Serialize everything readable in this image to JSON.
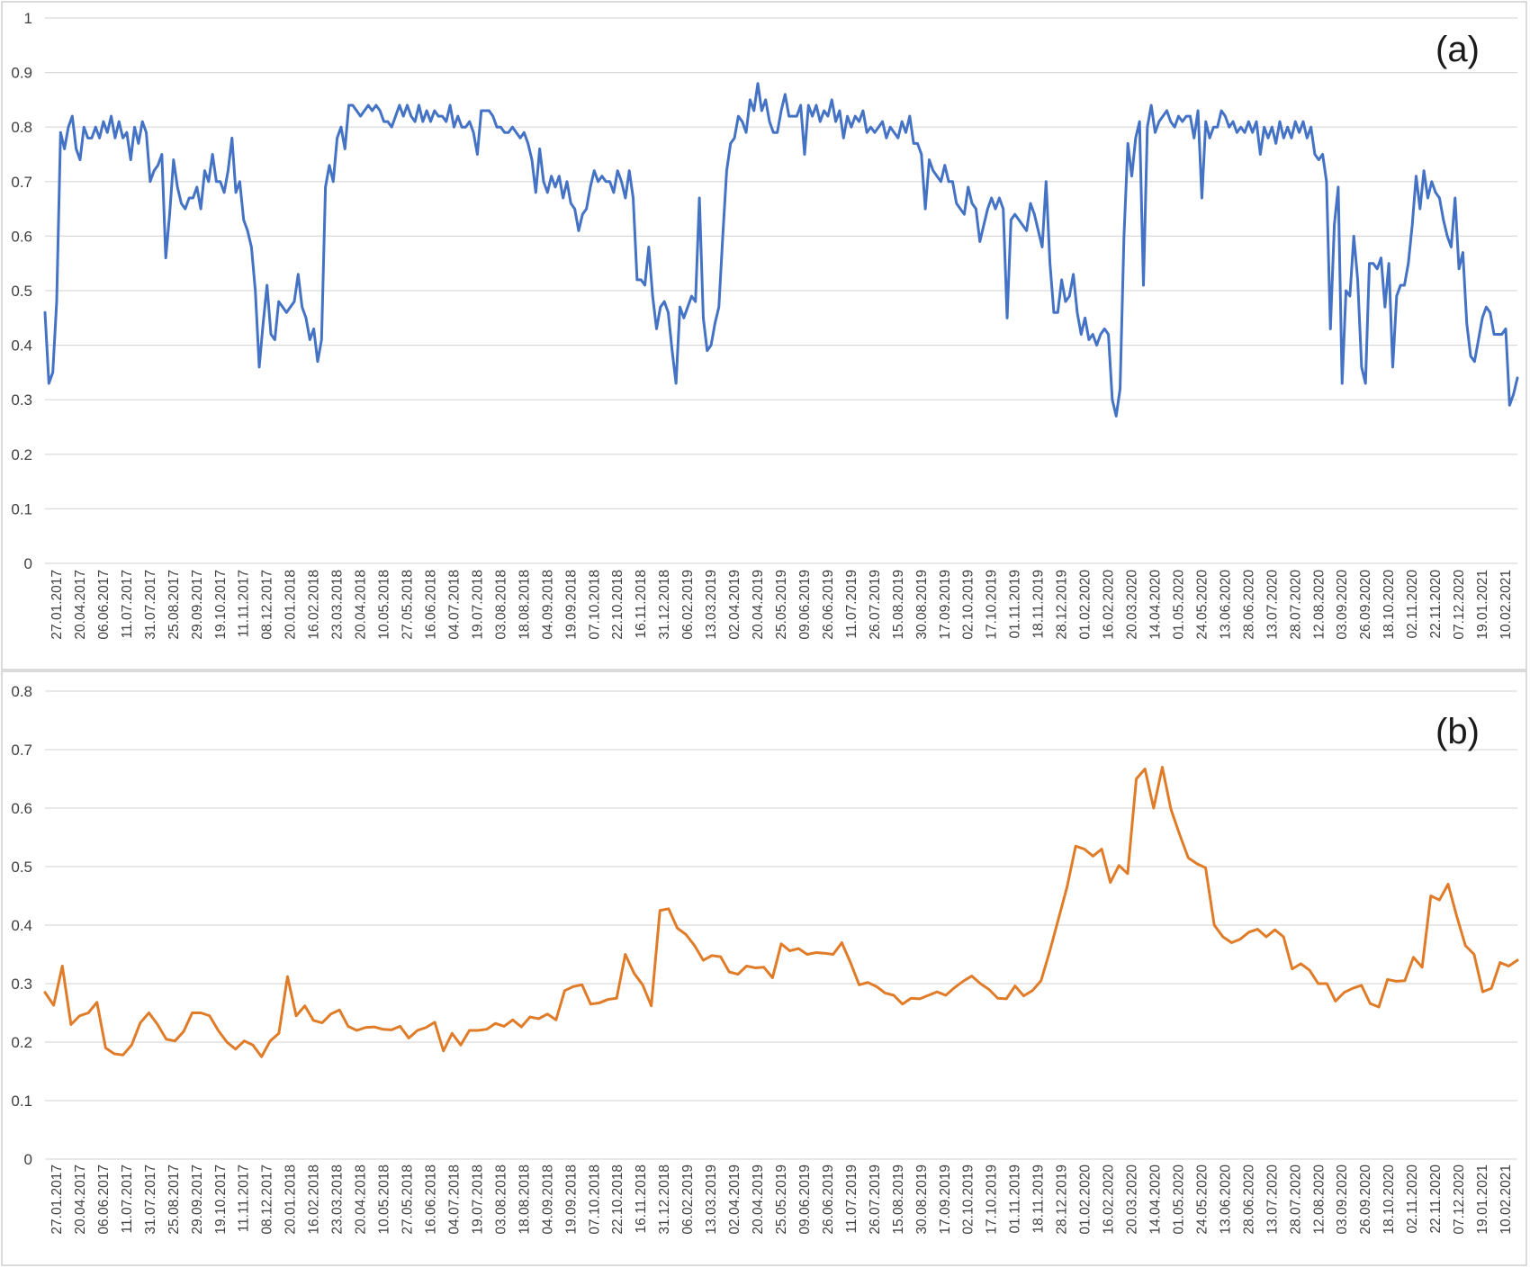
{
  "chart_data": [
    {
      "type": "line",
      "panel_label": "(a)",
      "ylim": [
        0,
        1
      ],
      "yticks": [
        "0",
        "0.1",
        "0.2",
        "0.3",
        "0.4",
        "0.5",
        "0.6",
        "0.7",
        "0.8",
        "0.9",
        "1"
      ],
      "xticks": [
        "27.01.2017",
        "20.04.2017",
        "06.06.2017",
        "11.07.2017",
        "31.07.2017",
        "25.08.2017",
        "29.09.2017",
        "19.10.2017",
        "11.11.2017",
        "08.12.2017",
        "20.01.2018",
        "16.02.2018",
        "23.03.2018",
        "20.04.2018",
        "10.05.2018",
        "27.05.2018",
        "16.06.2018",
        "04.07.2018",
        "19.07.2018",
        "03.08.2018",
        "18.08.2018",
        "04.09.2018",
        "19.09.2018",
        "07.10.2018",
        "22.10.2018",
        "16.11.2018",
        "31.12.2018",
        "06.02.2019",
        "13.03.2019",
        "02.04.2019",
        "20.04.2019",
        "25.05.2019",
        "09.06.2019",
        "26.06.2019",
        "11.07.2019",
        "26.07.2019",
        "15.08.2019",
        "30.08.2019",
        "17.09.2019",
        "02.10.2019",
        "17.10.2019",
        "01.11.2019",
        "18.11.2019",
        "28.12.2019",
        "01.02.2020",
        "16.02.2020",
        "20.03.2020",
        "14.04.2020",
        "01.05.2020",
        "24.05.2020",
        "13.06.2020",
        "28.06.2020",
        "13.07.2020",
        "28.07.2020",
        "12.08.2020",
        "03.09.2020",
        "26.09.2020",
        "18.10.2020",
        "02.11.2020",
        "22.11.2020",
        "07.12.2020",
        "19.01.2021",
        "10.02.2021"
      ],
      "grid": true,
      "colors": {
        "line": "#4472c4"
      },
      "series": [
        {
          "values": [
            0.46,
            0.33,
            0.35,
            0.48,
            0.79,
            0.76,
            0.8,
            0.82,
            0.76,
            0.74,
            0.8,
            0.78,
            0.78,
            0.8,
            0.78,
            0.81,
            0.79,
            0.82,
            0.78,
            0.81,
            0.78,
            0.79,
            0.74,
            0.8,
            0.77,
            0.81,
            0.79,
            0.7,
            0.72,
            0.73,
            0.75,
            0.56,
            0.64,
            0.74,
            0.69,
            0.66,
            0.65,
            0.67,
            0.67,
            0.69,
            0.65,
            0.72,
            0.7,
            0.75,
            0.7,
            0.7,
            0.68,
            0.72,
            0.78,
            0.68,
            0.7,
            0.63,
            0.61,
            0.58,
            0.5,
            0.36,
            0.44,
            0.51,
            0.42,
            0.41,
            0.48,
            0.47,
            0.46,
            0.47,
            0.48,
            0.53,
            0.47,
            0.45,
            0.41,
            0.43,
            0.37,
            0.41,
            0.69,
            0.73,
            0.7,
            0.78,
            0.8,
            0.76,
            0.84,
            0.84,
            0.83,
            0.82,
            0.83,
            0.84,
            0.83,
            0.84,
            0.83,
            0.81,
            0.81,
            0.8,
            0.82,
            0.84,
            0.82,
            0.84,
            0.82,
            0.81,
            0.84,
            0.81,
            0.83,
            0.81,
            0.83,
            0.82,
            0.82,
            0.81,
            0.84,
            0.8,
            0.82,
            0.8,
            0.8,
            0.81,
            0.79,
            0.75,
            0.83,
            0.83,
            0.83,
            0.82,
            0.8,
            0.8,
            0.79,
            0.79,
            0.8,
            0.79,
            0.78,
            0.79,
            0.77,
            0.74,
            0.68,
            0.76,
            0.7,
            0.68,
            0.71,
            0.69,
            0.71,
            0.67,
            0.7,
            0.66,
            0.65,
            0.61,
            0.64,
            0.65,
            0.69,
            0.72,
            0.7,
            0.71,
            0.7,
            0.7,
            0.68,
            0.72,
            0.7,
            0.67,
            0.72,
            0.67,
            0.52,
            0.52,
            0.51,
            0.58,
            0.49,
            0.43,
            0.47,
            0.48,
            0.46,
            0.39,
            0.33,
            0.47,
            0.45,
            0.47,
            0.49,
            0.48,
            0.67,
            0.45,
            0.39,
            0.4,
            0.44,
            0.47,
            0.6,
            0.72,
            0.77,
            0.78,
            0.82,
            0.81,
            0.79,
            0.85,
            0.83,
            0.88,
            0.83,
            0.85,
            0.81,
            0.79,
            0.79,
            0.83,
            0.86,
            0.82,
            0.82,
            0.82,
            0.84,
            0.75,
            0.84,
            0.82,
            0.84,
            0.81,
            0.83,
            0.82,
            0.85,
            0.81,
            0.83,
            0.78,
            0.82,
            0.8,
            0.82,
            0.81,
            0.83,
            0.79,
            0.8,
            0.79,
            0.8,
            0.81,
            0.78,
            0.8,
            0.79,
            0.78,
            0.81,
            0.79,
            0.82,
            0.77,
            0.77,
            0.75,
            0.65,
            0.74,
            0.72,
            0.71,
            0.7,
            0.73,
            0.7,
            0.7,
            0.66,
            0.65,
            0.64,
            0.69,
            0.66,
            0.65,
            0.59,
            0.62,
            0.65,
            0.67,
            0.65,
            0.67,
            0.65,
            0.45,
            0.63,
            0.64,
            0.63,
            0.62,
            0.61,
            0.66,
            0.64,
            0.61,
            0.58,
            0.7,
            0.55,
            0.46,
            0.46,
            0.52,
            0.48,
            0.49,
            0.53,
            0.46,
            0.42,
            0.45,
            0.41,
            0.42,
            0.4,
            0.42,
            0.43,
            0.42,
            0.3,
            0.27,
            0.32,
            0.6,
            0.77,
            0.71,
            0.78,
            0.81,
            0.51,
            0.8,
            0.84,
            0.79,
            0.81,
            0.82,
            0.83,
            0.81,
            0.8,
            0.82,
            0.81,
            0.82,
            0.82,
            0.78,
            0.83,
            0.67,
            0.81,
            0.78,
            0.8,
            0.8,
            0.83,
            0.82,
            0.8,
            0.81,
            0.79,
            0.8,
            0.79,
            0.81,
            0.79,
            0.81,
            0.75,
            0.8,
            0.78,
            0.8,
            0.77,
            0.81,
            0.78,
            0.8,
            0.78,
            0.81,
            0.79,
            0.81,
            0.78,
            0.8,
            0.75,
            0.74,
            0.75,
            0.7,
            0.43,
            0.62,
            0.69,
            0.33,
            0.5,
            0.49,
            0.6,
            0.52,
            0.36,
            0.33,
            0.55,
            0.55,
            0.54,
            0.56,
            0.47,
            0.55,
            0.36,
            0.49,
            0.51,
            0.51,
            0.55,
            0.62,
            0.71,
            0.65,
            0.72,
            0.67,
            0.7,
            0.68,
            0.67,
            0.63,
            0.6,
            0.58,
            0.67,
            0.54,
            0.57,
            0.44,
            0.38,
            0.37,
            0.41,
            0.45,
            0.47,
            0.46,
            0.42,
            0.42,
            0.42,
            0.43,
            0.29,
            0.31,
            0.34
          ]
        }
      ]
    },
    {
      "type": "line",
      "panel_label": "(b)",
      "ylim": [
        0,
        0.8
      ],
      "yticks": [
        "0",
        "0.1",
        "0.2",
        "0.3",
        "0.4",
        "0.5",
        "0.6",
        "0.7",
        "0.8"
      ],
      "xticks": [
        "27.01.2017",
        "20.04.2017",
        "06.06.2017",
        "11.07.2017",
        "31.07.2017",
        "25.08.2017",
        "29.09.2017",
        "19.10.2017",
        "11.11.2017",
        "08.12.2017",
        "20.01.2018",
        "16.02.2018",
        "23.03.2018",
        "20.04.2018",
        "10.05.2018",
        "27.05.2018",
        "16.06.2018",
        "04.07.2018",
        "19.07.2018",
        "03.08.2018",
        "18.08.2018",
        "04.09.2018",
        "19.09.2018",
        "07.10.2018",
        "22.10.2018",
        "16.11.2018",
        "31.12.2018",
        "06.02.2019",
        "13.03.2019",
        "02.04.2019",
        "20.04.2019",
        "25.05.2019",
        "09.06.2019",
        "26.06.2019",
        "11.07.2019",
        "26.07.2019",
        "15.08.2019",
        "30.08.2019",
        "17.09.2019",
        "02.10.2019",
        "17.10.2019",
        "01.11.2019",
        "18.11.2019",
        "28.12.2019",
        "01.02.2020",
        "16.02.2020",
        "20.03.2020",
        "14.04.2020",
        "01.05.2020",
        "24.05.2020",
        "13.06.2020",
        "28.06.2020",
        "13.07.2020",
        "28.07.2020",
        "12.08.2020",
        "03.09.2020",
        "26.09.2020",
        "18.10.2020",
        "02.11.2020",
        "22.11.2020",
        "07.12.2020",
        "19.01.2021",
        "10.02.2021"
      ],
      "grid": true,
      "colors": {
        "line": "#e07b28"
      },
      "series": [
        {
          "values": [
            0.285,
            0.263,
            0.33,
            0.23,
            0.245,
            0.25,
            0.268,
            0.19,
            0.18,
            0.178,
            0.195,
            0.233,
            0.25,
            0.23,
            0.205,
            0.202,
            0.218,
            0.25,
            0.25,
            0.245,
            0.22,
            0.2,
            0.188,
            0.202,
            0.195,
            0.175,
            0.202,
            0.215,
            0.312,
            0.245,
            0.262,
            0.237,
            0.233,
            0.248,
            0.255,
            0.227,
            0.22,
            0.225,
            0.226,
            0.222,
            0.221,
            0.227,
            0.207,
            0.22,
            0.225,
            0.234,
            0.185,
            0.215,
            0.195,
            0.22,
            0.22,
            0.222,
            0.232,
            0.227,
            0.238,
            0.226,
            0.243,
            0.24,
            0.248,
            0.238,
            0.288,
            0.295,
            0.298,
            0.265,
            0.267,
            0.273,
            0.275,
            0.35,
            0.318,
            0.298,
            0.262,
            0.425,
            0.428,
            0.395,
            0.384,
            0.365,
            0.34,
            0.348,
            0.346,
            0.32,
            0.316,
            0.33,
            0.327,
            0.328,
            0.31,
            0.368,
            0.356,
            0.36,
            0.35,
            0.353,
            0.352,
            0.35,
            0.37,
            0.336,
            0.298,
            0.302,
            0.295,
            0.284,
            0.28,
            0.265,
            0.275,
            0.274,
            0.28,
            0.286,
            0.28,
            0.293,
            0.304,
            0.313,
            0.3,
            0.29,
            0.275,
            0.274,
            0.296,
            0.279,
            0.288,
            0.305,
            0.355,
            0.41,
            0.465,
            0.535,
            0.53,
            0.518,
            0.53,
            0.473,
            0.502,
            0.488,
            0.65,
            0.667,
            0.6,
            0.67,
            0.598,
            0.555,
            0.515,
            0.505,
            0.498,
            0.4,
            0.38,
            0.37,
            0.376,
            0.388,
            0.393,
            0.38,
            0.392,
            0.38,
            0.325,
            0.334,
            0.323,
            0.3,
            0.3,
            0.27,
            0.285,
            0.292,
            0.297,
            0.266,
            0.26,
            0.307,
            0.304,
            0.305,
            0.345,
            0.328,
            0.45,
            0.443,
            0.47,
            0.415,
            0.365,
            0.35,
            0.286,
            0.292,
            0.336,
            0.33,
            0.34
          ]
        }
      ]
    }
  ]
}
